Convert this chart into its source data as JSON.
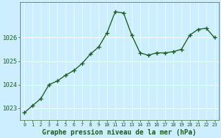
{
  "x": [
    0,
    1,
    2,
    3,
    4,
    5,
    6,
    7,
    8,
    9,
    10,
    11,
    12,
    13,
    14,
    15,
    16,
    17,
    18,
    19,
    20,
    21,
    22,
    23
  ],
  "y": [
    1022.8,
    1023.1,
    1023.4,
    1024.0,
    1024.15,
    1024.4,
    1024.6,
    1024.9,
    1025.3,
    1025.6,
    1026.2,
    1027.1,
    1027.05,
    1026.1,
    1025.35,
    1025.25,
    1025.35,
    1025.35,
    1025.4,
    1025.5,
    1026.1,
    1026.35,
    1026.4,
    1026.0
  ],
  "line_color": "#1a5e1a",
  "marker": "+",
  "marker_size": 4,
  "marker_linewidth": 1.0,
  "bg_color": "#cceeff",
  "grid_color": "#ffffff",
  "xlabel": "Graphe pression niveau de la mer (hPa)",
  "xlabel_color": "#1a5e1a",
  "tick_color": "#1a5e1a",
  "spine_color": "#336633",
  "ylim": [
    1022.5,
    1027.5
  ],
  "xlim": [
    -0.5,
    23.5
  ],
  "yticks": [
    1023,
    1024,
    1025,
    1026
  ],
  "xticks": [
    0,
    1,
    2,
    3,
    4,
    5,
    6,
    7,
    8,
    9,
    10,
    11,
    12,
    13,
    14,
    15,
    16,
    17,
    18,
    19,
    20,
    21,
    22,
    23
  ],
  "xtick_fontsize": 5.0,
  "ytick_fontsize": 6.5,
  "xlabel_fontsize": 7.0,
  "linewidth": 1.0
}
